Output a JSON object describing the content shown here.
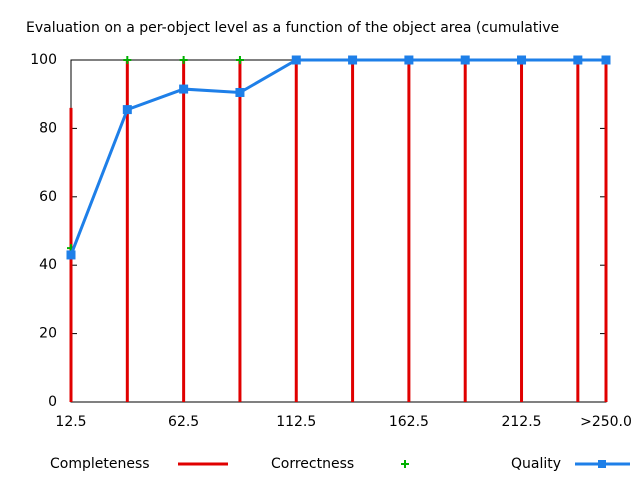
{
  "chart_data": {
    "type": "line",
    "title": "Evaluation on a per-object level as a function of the object area (cumulative",
    "x": [
      12.5,
      37.5,
      62.5,
      87.5,
      112.5,
      137.5,
      162.5,
      187.5,
      212.5,
      237.5,
      250
    ],
    "series": [
      {
        "name": "Completeness",
        "color": "#e00000",
        "style": "impulses",
        "values": [
          86,
          100,
          100,
          100,
          100,
          100,
          100,
          100,
          100,
          100,
          100
        ]
      },
      {
        "name": "Correctness",
        "color": "#00b000",
        "style": "points",
        "values": [
          45,
          100,
          100,
          100,
          100,
          100,
          100,
          100,
          100,
          100,
          100
        ]
      },
      {
        "name": "Quality",
        "color": "#1e7fe8",
        "style": "linespoints",
        "values": [
          43,
          85.5,
          91.5,
          90.5,
          100,
          100,
          100,
          100,
          100,
          100,
          100
        ]
      }
    ],
    "xlim": [
      12.5,
      250
    ],
    "xticks": [
      12.5,
      62.5,
      112.5,
      162.5,
      212.5,
      {
        "value": 250,
        "label": ">250.0"
      }
    ],
    "ylim": [
      0,
      100
    ],
    "yticks": [
      0,
      20,
      40,
      60,
      80,
      100
    ]
  }
}
